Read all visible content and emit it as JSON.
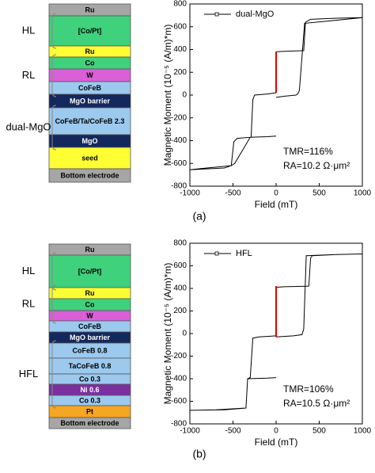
{
  "chart_data": [
    {
      "type": "line",
      "x_label": "Field (mT)",
      "y_label": "Magnetic Moment (10⁻⁵ (A/m)*m)",
      "xlim": [
        -1000,
        1000
      ],
      "ylim": [
        -800,
        800
      ],
      "xticks": [
        -1000,
        -500,
        0,
        500,
        1000
      ],
      "yticks": [
        -800,
        -600,
        -400,
        -200,
        0,
        200,
        400,
        600,
        800
      ],
      "legend": "upper left",
      "annotations": [
        "TMR=116%",
        "RA=10.2 Ω·μm²"
      ],
      "series": [
        {
          "name": "dual-MgO",
          "color": "#000000",
          "x": [
            1000,
            700,
            400,
            340,
            320,
            100,
            0,
            null,
            0,
            -100,
            -250,
            -270,
            -290,
            -450,
            -490,
            -520,
            -800,
            -1000,
            null,
            -1000,
            -600,
            -520,
            -480,
            -300,
            -100,
            0,
            null,
            0,
            100,
            230,
            250,
            270,
            330,
            600,
            1000
          ],
          "values": [
            680,
            675,
            665,
            640,
            390,
            385,
            380,
            null,
            20,
            10,
            0,
            -40,
            -370,
            -380,
            -410,
            -620,
            -640,
            -655,
            null,
            -655,
            -640,
            -620,
            -600,
            -370,
            -365,
            -360,
            null,
            -20,
            -10,
            0,
            10,
            40,
            630,
            650,
            680
          ]
        },
        {
          "color": "#e00000",
          "x": [
            0,
            0
          ],
          "values": [
            20,
            380
          ]
        }
      ]
    },
    {
      "type": "line",
      "x_label": "Field (mT)",
      "y_label": "Magnetic Moment (10⁻⁵ (A/m)*m)",
      "xlim": [
        -1000,
        1000
      ],
      "ylim": [
        -800,
        800
      ],
      "xticks": [
        -1000,
        -500,
        0,
        500,
        1000
      ],
      "yticks": [
        -800,
        -600,
        -400,
        -200,
        0,
        200,
        400,
        600,
        800
      ],
      "legend": "upper left",
      "annotations": [
        "TMR=106%",
        "RA=10.5 Ω·μm²"
      ],
      "series": [
        {
          "name": "HFL",
          "color": "#000000",
          "x": [
            1000,
            700,
            420,
            400,
            380,
            100,
            0,
            null,
            0,
            -200,
            -270,
            -300,
            -330,
            -350,
            -700,
            -1000,
            null,
            -1000,
            -600,
            -350,
            -330,
            -100,
            0,
            null,
            0,
            200,
            300,
            320,
            350,
            700,
            1000
          ],
          "values": [
            705,
            700,
            690,
            670,
            420,
            415,
            410,
            null,
            -20,
            -30,
            -40,
            -390,
            -400,
            -660,
            -675,
            -680,
            null,
            -680,
            -675,
            -660,
            -400,
            -395,
            -390,
            null,
            -30,
            -20,
            -10,
            40,
            690,
            700,
            705
          ]
        },
        {
          "color": "#e00000",
          "x": [
            0,
            0
          ],
          "values": [
            -30,
            420
          ]
        }
      ]
    }
  ],
  "stacks": [
    {
      "layers": [
        {
          "label": "Ru",
          "color": "#a6a6a6",
          "text_color": "#000000"
        },
        {
          "label": "[Co/Pt]",
          "color": "#3fd17c",
          "text_color": "#000000"
        },
        {
          "label": "Ru",
          "color": "#ffff33",
          "text_color": "#000000"
        },
        {
          "label": "Co",
          "color": "#3fd17c",
          "text_color": "#000000"
        },
        {
          "label": "W",
          "color": "#d95fd9",
          "text_color": "#000000"
        },
        {
          "label": "CoFeB",
          "color": "#9cc9ee",
          "text_color": "#000000"
        },
        {
          "label": "MgO barrier",
          "color": "#13285c",
          "text_color": "#ffffff"
        },
        {
          "label": "CoFeB/Ta/CoFeB 2.3",
          "color": "#9cc9ee",
          "text_color": "#000000"
        },
        {
          "label": "MgO",
          "color": "#13285c",
          "text_color": "#ffffff"
        },
        {
          "label": "seed",
          "color": "#ffff33",
          "text_color": "#000000"
        },
        {
          "label": "Bottom electrode",
          "color": "#a6a6a6",
          "text_color": "#000000"
        }
      ],
      "groups": [
        "HL",
        "RL",
        "dual-MgO"
      ]
    },
    {
      "layers": [
        {
          "label": "Ru",
          "color": "#a6a6a6",
          "text_color": "#000000"
        },
        {
          "label": "[Co/Pt]",
          "color": "#3fd17c",
          "text_color": "#000000"
        },
        {
          "label": "Ru",
          "color": "#ffff33",
          "text_color": "#000000"
        },
        {
          "label": "Co",
          "color": "#3fd17c",
          "text_color": "#000000"
        },
        {
          "label": "W",
          "color": "#d95fd9",
          "text_color": "#000000"
        },
        {
          "label": "CoFeB",
          "color": "#9cc9ee",
          "text_color": "#000000"
        },
        {
          "label": "MgO barrier",
          "color": "#13285c",
          "text_color": "#ffffff"
        },
        {
          "label": "CoFeB 0.8",
          "color": "#9cc9ee",
          "text_color": "#000000"
        },
        {
          "label": "TaCoFeB 0.8",
          "color": "#9cc9ee",
          "text_color": "#000000"
        },
        {
          "label": "Co 0.3",
          "color": "#9cc9ee",
          "text_color": "#000000"
        },
        {
          "label": "Ni 0.6",
          "color": "#7a30a0",
          "text_color": "#ffffff"
        },
        {
          "label": "Co 0.3",
          "color": "#9cc9ee",
          "text_color": "#000000"
        },
        {
          "label": "Pt",
          "color": "#f5a623",
          "text_color": "#000000"
        },
        {
          "label": "Bottom electrode",
          "color": "#a6a6a6",
          "text_color": "#000000"
        }
      ],
      "groups": [
        "HL",
        "RL",
        "HFL"
      ]
    }
  ],
  "captions": [
    "(a)",
    "(b)"
  ]
}
